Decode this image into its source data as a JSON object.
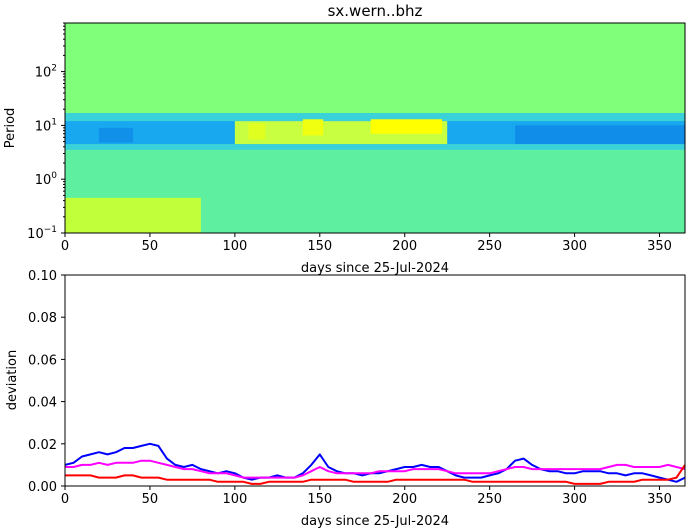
{
  "chart_data": [
    {
      "type": "heatmap",
      "title": "sx.wern..bhz",
      "xlabel": "days since 25-Jul-2024",
      "ylabel": "Period",
      "xlim": [
        0,
        365
      ],
      "ylim": [
        0.1,
        800
      ],
      "yscale": "log",
      "x_ticks": [
        "0",
        "50",
        "100",
        "150",
        "200",
        "250",
        "300",
        "350"
      ],
      "y_ticks": [
        {
          "value": 0.1,
          "label": "10",
          "exp": "−1"
        },
        {
          "value": 1,
          "label": "10",
          "exp": "0"
        },
        {
          "value": 10,
          "label": "10",
          "exp": "1"
        },
        {
          "value": 100,
          "label": "10",
          "exp": "2"
        }
      ],
      "background_color": "#80ff7a",
      "bands": [
        {
          "x0": 0,
          "x1": 365,
          "y0": 3.5,
          "y1": 17,
          "color": "#3ad2d8"
        },
        {
          "x0": 0,
          "x1": 365,
          "y0": 4.5,
          "y1": 12,
          "color": "#17a8f0"
        },
        {
          "x0": 0,
          "x1": 365,
          "y0": 0.1,
          "y1": 3.5,
          "color": "#5ef0a0"
        },
        {
          "x0": 0,
          "x1": 80,
          "y0": 0.1,
          "y1": 0.45,
          "color": "#c0ff3a"
        },
        {
          "x0": 100,
          "x1": 225,
          "y0": 4.5,
          "y1": 12,
          "color": "#c8ff40"
        },
        {
          "x0": 140,
          "x1": 152,
          "y0": 6.5,
          "y1": 13,
          "color": "#f0ff10"
        },
        {
          "x0": 180,
          "x1": 222,
          "y0": 7,
          "y1": 13,
          "color": "#ffff00"
        },
        {
          "x0": 108,
          "x1": 118,
          "y0": 5.5,
          "y1": 11,
          "color": "#e0ff20"
        },
        {
          "x0": 265,
          "x1": 365,
          "y0": 4.5,
          "y1": 10,
          "color": "#0f8de8"
        },
        {
          "x0": 20,
          "x1": 40,
          "y0": 4.8,
          "y1": 9,
          "color": "#1090e8"
        }
      ]
    },
    {
      "type": "line",
      "xlabel": "days since 25-Jul-2024",
      "ylabel": "deviation",
      "xlim": [
        0,
        365
      ],
      "ylim": [
        0,
        0.1
      ],
      "x_ticks": [
        "0",
        "50",
        "100",
        "150",
        "200",
        "250",
        "300",
        "350"
      ],
      "y_ticks": [
        "0.00",
        "0.02",
        "0.04",
        "0.06",
        "0.08",
        "0.10"
      ],
      "x": [
        0,
        5,
        10,
        15,
        20,
        25,
        30,
        35,
        40,
        45,
        50,
        55,
        60,
        65,
        70,
        75,
        80,
        85,
        90,
        95,
        100,
        105,
        110,
        115,
        120,
        125,
        130,
        135,
        140,
        145,
        150,
        155,
        160,
        165,
        170,
        175,
        180,
        185,
        190,
        195,
        200,
        205,
        210,
        215,
        220,
        225,
        230,
        235,
        240,
        245,
        250,
        255,
        260,
        265,
        270,
        275,
        280,
        285,
        290,
        295,
        300,
        305,
        310,
        315,
        320,
        325,
        330,
        335,
        340,
        345,
        350,
        355,
        360,
        365
      ],
      "series": [
        {
          "color": "#0000ff",
          "values": [
            0.01,
            0.011,
            0.014,
            0.015,
            0.016,
            0.015,
            0.016,
            0.018,
            0.018,
            0.019,
            0.02,
            0.019,
            0.013,
            0.01,
            0.009,
            0.01,
            0.008,
            0.007,
            0.006,
            0.007,
            0.006,
            0.004,
            0.003,
            0.004,
            0.004,
            0.005,
            0.004,
            0.004,
            0.006,
            0.01,
            0.015,
            0.009,
            0.007,
            0.006,
            0.006,
            0.005,
            0.006,
            0.006,
            0.007,
            0.008,
            0.009,
            0.009,
            0.01,
            0.009,
            0.009,
            0.007,
            0.005,
            0.004,
            0.004,
            0.004,
            0.005,
            0.006,
            0.008,
            0.012,
            0.013,
            0.01,
            0.008,
            0.007,
            0.007,
            0.006,
            0.006,
            0.007,
            0.007,
            0.007,
            0.006,
            0.006,
            0.005,
            0.006,
            0.006,
            0.005,
            0.004,
            0.003,
            0.002,
            0.004
          ]
        },
        {
          "color": "#ff00ff",
          "values": [
            0.009,
            0.009,
            0.01,
            0.01,
            0.011,
            0.01,
            0.011,
            0.011,
            0.011,
            0.012,
            0.012,
            0.011,
            0.01,
            0.009,
            0.008,
            0.008,
            0.007,
            0.006,
            0.006,
            0.006,
            0.005,
            0.004,
            0.004,
            0.004,
            0.004,
            0.004,
            0.004,
            0.004,
            0.005,
            0.007,
            0.009,
            0.007,
            0.006,
            0.006,
            0.006,
            0.006,
            0.006,
            0.007,
            0.007,
            0.007,
            0.007,
            0.008,
            0.008,
            0.008,
            0.008,
            0.007,
            0.006,
            0.006,
            0.006,
            0.006,
            0.006,
            0.007,
            0.008,
            0.009,
            0.009,
            0.008,
            0.008,
            0.008,
            0.008,
            0.008,
            0.008,
            0.008,
            0.008,
            0.008,
            0.009,
            0.01,
            0.01,
            0.009,
            0.009,
            0.009,
            0.009,
            0.01,
            0.009,
            0.008
          ]
        },
        {
          "color": "#ff0000",
          "values": [
            0.005,
            0.005,
            0.005,
            0.005,
            0.004,
            0.004,
            0.004,
            0.005,
            0.005,
            0.004,
            0.004,
            0.004,
            0.003,
            0.003,
            0.003,
            0.003,
            0.003,
            0.003,
            0.002,
            0.002,
            0.002,
            0.002,
            0.001,
            0.001,
            0.002,
            0.002,
            0.002,
            0.002,
            0.002,
            0.003,
            0.003,
            0.003,
            0.003,
            0.003,
            0.002,
            0.002,
            0.002,
            0.002,
            0.002,
            0.003,
            0.003,
            0.003,
            0.003,
            0.003,
            0.003,
            0.003,
            0.003,
            0.003,
            0.002,
            0.002,
            0.002,
            0.002,
            0.002,
            0.002,
            0.002,
            0.002,
            0.002,
            0.002,
            0.002,
            0.002,
            0.001,
            0.001,
            0.001,
            0.001,
            0.002,
            0.002,
            0.002,
            0.002,
            0.003,
            0.003,
            0.003,
            0.003,
            0.004,
            0.01
          ]
        }
      ]
    }
  ]
}
